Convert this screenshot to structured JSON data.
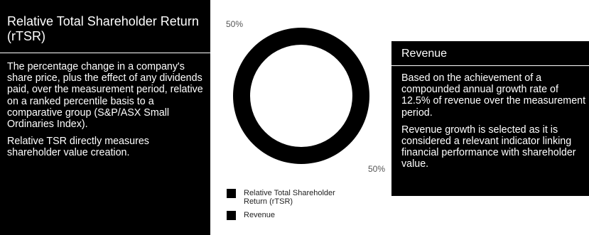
{
  "left_panel": {
    "title": "Relative Total Shareholder Return (rTSR)",
    "paragraphs": [
      "The percentage change in a company's share price, plus the effect of any dividends paid, over the measurement period, relative on a ranked percentile basis to a comparative group (S&P/ASX Small Ordinaries Index).",
      "Relative TSR directly measures shareholder value creation."
    ]
  },
  "right_panel": {
    "title": "Revenue",
    "paragraphs": [
      "Based on the achievement of a compounded annual growth rate of 12.5% of revenue over the measurement period.",
      "Revenue growth is selected as it is considered a relevant indicator linking financial performance with shareholder value."
    ]
  },
  "chart_data": {
    "type": "pie",
    "donut": true,
    "categories": [
      "Relative Total Shareholder Return (rTSR)",
      "Revenue"
    ],
    "values": [
      50,
      50
    ],
    "data_labels": [
      "50%",
      "50%"
    ],
    "legend_entries": [
      "Relative Total Shareholder Return (rTSR)",
      "Revenue"
    ],
    "colors": [
      "#000000",
      "#000000"
    ],
    "legend_position": "bottom"
  }
}
